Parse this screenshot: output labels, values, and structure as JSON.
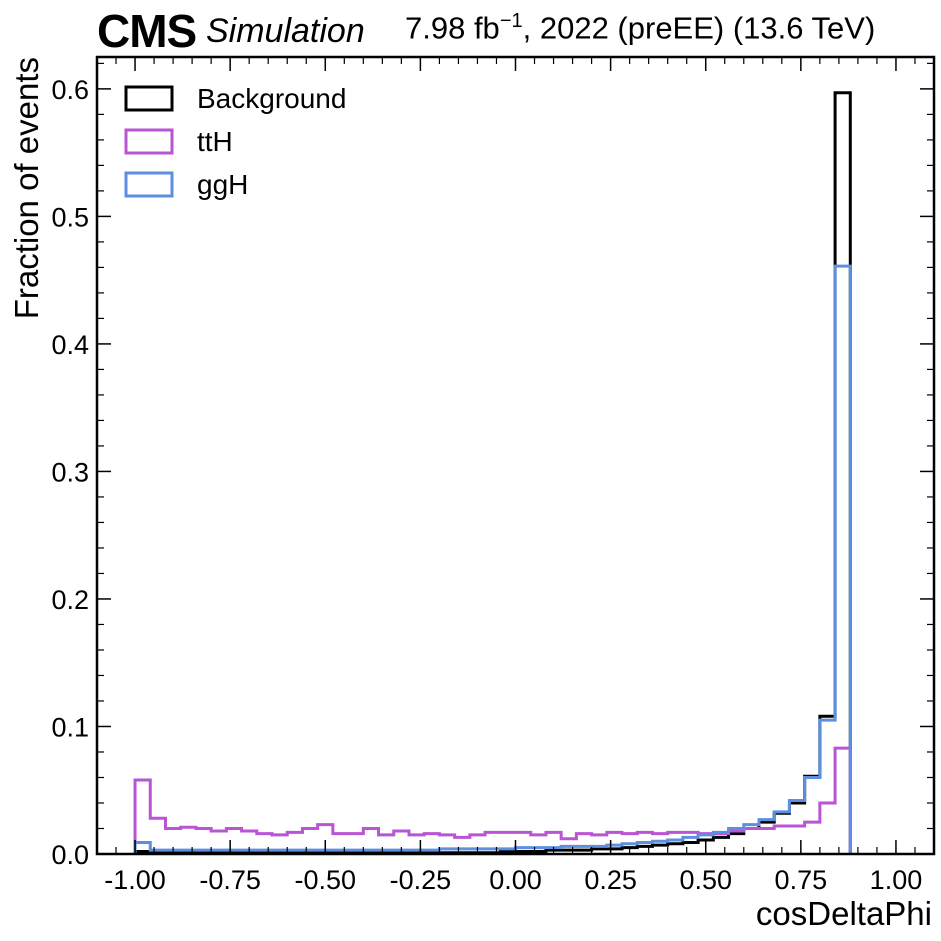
{
  "header": {
    "experiment": "CMS",
    "label": "Simulation",
    "lumi_value": "7.98 fb",
    "lumi_exp": "−1",
    "lumi_rest": ", 2022 (preEE) (13.6 TeV)"
  },
  "chart_data": {
    "type": "histogram-step",
    "xlabel": "cosDeltaPhi",
    "ylabel": "Fraction of events",
    "xlim": [
      -1.1,
      1.1
    ],
    "ylim": [
      0,
      0.625
    ],
    "x_ticks": [
      "-1.00",
      "-0.75",
      "-0.50",
      "-0.25",
      "0.00",
      "0.25",
      "0.50",
      "0.75",
      "1.00"
    ],
    "y_ticks": [
      "0.0",
      "0.1",
      "0.2",
      "0.3",
      "0.4",
      "0.5",
      "0.6"
    ],
    "legend_position": "top-left",
    "bin_start": -1.0,
    "bin_width": 0.04,
    "series": [
      {
        "name": "Background",
        "color": "#000000",
        "values": [
          0.002,
          0.001,
          0.001,
          0.001,
          0.001,
          0.001,
          0.001,
          0.001,
          0.001,
          0.001,
          0.001,
          0.001,
          0.001,
          0.001,
          0.001,
          0.001,
          0.001,
          0.001,
          0.001,
          0.001,
          0.001,
          0.001,
          0.001,
          0.001,
          0.002,
          0.002,
          0.002,
          0.003,
          0.003,
          0.003,
          0.004,
          0.004,
          0.005,
          0.006,
          0.007,
          0.008,
          0.009,
          0.011,
          0.013,
          0.016,
          0.02,
          0.025,
          0.032,
          0.04,
          0.061,
          0.108,
          0.597
        ]
      },
      {
        "name": "ttH",
        "color": "#b955d4",
        "values": [
          0.058,
          0.028,
          0.02,
          0.021,
          0.02,
          0.018,
          0.02,
          0.018,
          0.016,
          0.015,
          0.017,
          0.02,
          0.023,
          0.016,
          0.016,
          0.02,
          0.015,
          0.018,
          0.015,
          0.016,
          0.015,
          0.013,
          0.015,
          0.017,
          0.017,
          0.017,
          0.015,
          0.017,
          0.012,
          0.016,
          0.015,
          0.017,
          0.016,
          0.017,
          0.016,
          0.017,
          0.017,
          0.016,
          0.016,
          0.018,
          0.02,
          0.02,
          0.022,
          0.022,
          0.025,
          0.04,
          0.083
        ]
      },
      {
        "name": "ggH",
        "color": "#5c8fe0",
        "values": [
          0.009,
          0.003,
          0.003,
          0.003,
          0.003,
          0.003,
          0.003,
          0.003,
          0.003,
          0.003,
          0.003,
          0.003,
          0.003,
          0.003,
          0.003,
          0.003,
          0.003,
          0.003,
          0.003,
          0.003,
          0.004,
          0.004,
          0.004,
          0.004,
          0.004,
          0.005,
          0.005,
          0.005,
          0.006,
          0.006,
          0.006,
          0.007,
          0.008,
          0.009,
          0.01,
          0.011,
          0.013,
          0.015,
          0.017,
          0.02,
          0.023,
          0.027,
          0.033,
          0.042,
          0.06,
          0.105,
          0.461
        ]
      }
    ]
  }
}
